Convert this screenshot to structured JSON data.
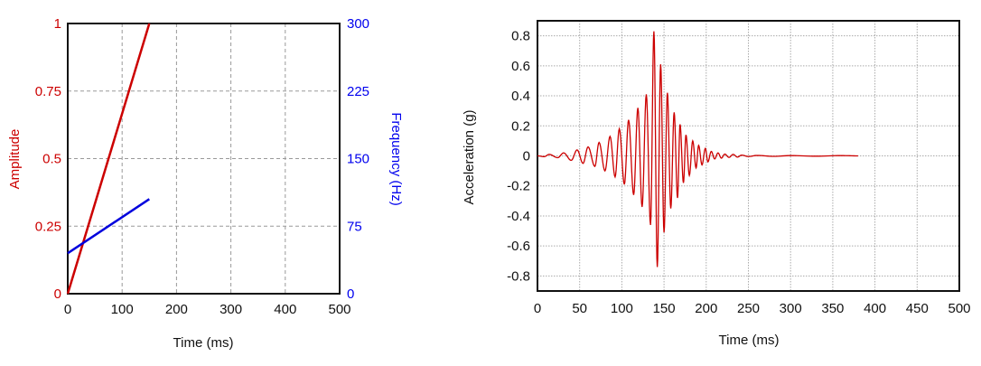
{
  "chart_data": [
    {
      "type": "line",
      "xlabel": "Time (ms)",
      "ylabel": "Amplitude",
      "y2label": "Frequency (Hz)",
      "xlim": [
        0,
        500
      ],
      "ylim": [
        0,
        1
      ],
      "y2lim": [
        0,
        300
      ],
      "xticks": [
        "0",
        "100",
        "200",
        "300",
        "400",
        "500"
      ],
      "yticks": [
        "0",
        "0.25",
        "0.5",
        "0.75",
        "1"
      ],
      "y2ticks": [
        "0",
        "75",
        "150",
        "225",
        "300"
      ],
      "grid": true,
      "series": [
        {
          "axis": "left",
          "color": "#cc0000",
          "points": [
            [
              0,
              0
            ],
            [
              150,
              1
            ]
          ]
        },
        {
          "axis": "right",
          "color": "#0000dd",
          "points": [
            [
              0,
              45
            ],
            [
              150,
              105
            ]
          ]
        }
      ],
      "colors": {
        "left_axis": "#cc0000",
        "right_axis": "#0000ee"
      }
    },
    {
      "type": "line",
      "xlabel": "Time (ms)",
      "ylabel": "Acceleration (g)",
      "xlim": [
        0,
        500
      ],
      "ylim": [
        -0.9,
        0.9
      ],
      "xticks": [
        "0",
        "50",
        "100",
        "150",
        "200",
        "250",
        "300",
        "350",
        "400",
        "450",
        "500"
      ],
      "yticks": [
        "-0.8",
        "-0.6",
        "-0.4",
        "-0.2",
        "0",
        "0.2",
        "0.4",
        "0.6",
        "0.8"
      ],
      "grid": true,
      "series": [
        {
          "color": "#cc0000",
          "points": [
            [
              0,
              0
            ],
            [
              8,
              -0.005
            ],
            [
              14,
              0.01
            ],
            [
              24,
              -0.012
            ],
            [
              31,
              0.02
            ],
            [
              40,
              -0.03
            ],
            [
              47,
              0.04
            ],
            [
              54,
              -0.05
            ],
            [
              60,
              0.06
            ],
            [
              68,
              -0.07
            ],
            [
              73,
              0.09
            ],
            [
              80,
              -0.1
            ],
            [
              86,
              0.13
            ],
            [
              92,
              -0.14
            ],
            [
              97,
              0.18
            ],
            [
              103,
              -0.19
            ],
            [
              108,
              0.24
            ],
            [
              114,
              -0.26
            ],
            [
              119,
              0.32
            ],
            [
              124,
              -0.34
            ],
            [
              129,
              0.41
            ],
            [
              134,
              -0.46
            ],
            [
              138,
              0.83
            ],
            [
              142,
              -0.74
            ],
            [
              146,
              0.61
            ],
            [
              150,
              -0.51
            ],
            [
              154,
              0.42
            ],
            [
              158,
              -0.35
            ],
            [
              162,
              0.29
            ],
            [
              166,
              -0.28
            ],
            [
              169,
              0.21
            ],
            [
              173,
              -0.18
            ],
            [
              176,
              0.14
            ],
            [
              180,
              -0.13
            ],
            [
              184,
              0.1
            ],
            [
              188,
              -0.08
            ],
            [
              191,
              0.07
            ],
            [
              195,
              -0.06
            ],
            [
              199,
              0.05
            ],
            [
              202,
              -0.04
            ],
            [
              206,
              0.03
            ],
            [
              210,
              -0.02
            ],
            [
              214,
              0.02
            ],
            [
              218,
              -0.015
            ],
            [
              222,
              0.012
            ],
            [
              227,
              -0.01
            ],
            [
              232,
              0.01
            ],
            [
              237,
              -0.008
            ],
            [
              242,
              0.005
            ],
            [
              250,
              -0.004
            ],
            [
              260,
              0.003
            ],
            [
              280,
              -0.003
            ],
            [
              300,
              0.002
            ],
            [
              330,
              -0.002
            ],
            [
              360,
              0.002
            ],
            [
              380,
              0
            ]
          ]
        }
      ]
    }
  ]
}
